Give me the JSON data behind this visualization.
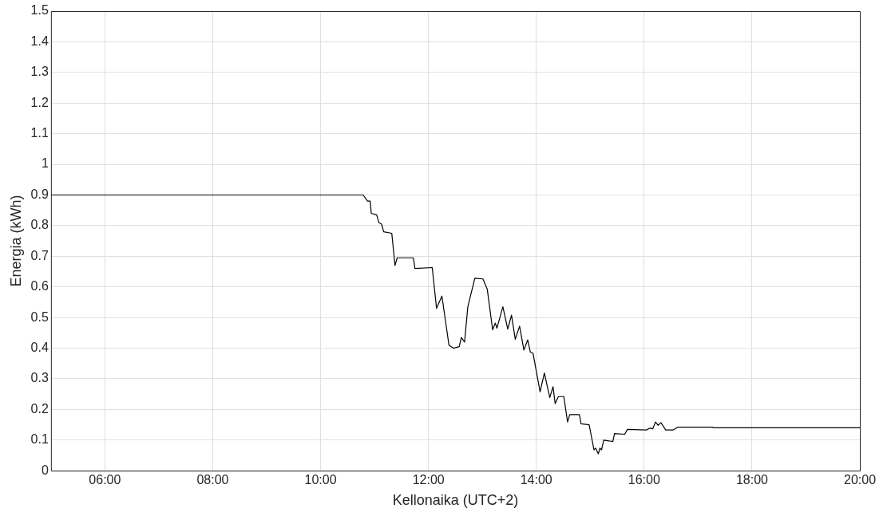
{
  "chart_data": {
    "type": "line",
    "xlabel": "Kellonaika (UTC+2)",
    "ylabel": "Energia (kWh)",
    "xlim": [
      5,
      20
    ],
    "xticks": [
      {
        "value": 6,
        "label": "06:00"
      },
      {
        "value": 8,
        "label": "08:00"
      },
      {
        "value": 10,
        "label": "10:00"
      },
      {
        "value": 12,
        "label": "12:00"
      },
      {
        "value": 14,
        "label": "14:00"
      },
      {
        "value": 16,
        "label": "16:00"
      },
      {
        "value": 18,
        "label": "18:00"
      },
      {
        "value": 20,
        "label": "20:00"
      }
    ],
    "ylim": [
      0,
      1.5
    ],
    "yticks": [
      0,
      0.1,
      0.2,
      0.3,
      0.4,
      0.5,
      0.6,
      0.7,
      0.8,
      0.9,
      1,
      1.1,
      1.2,
      1.3,
      1.4,
      1.5
    ],
    "grid": true,
    "marker": "none",
    "line_style": "solid",
    "series": [
      {
        "color": "#000000",
        "x": [
          5,
          10.79,
          10.87,
          10.92,
          10.94,
          11.04,
          11.08,
          11.13,
          11.17,
          11.32,
          11.38,
          11.42,
          11.72,
          11.75,
          12.07,
          12.15,
          12.25,
          12.38,
          12.46,
          12.57,
          12.61,
          12.67,
          12.73,
          12.86,
          13.01,
          13.09,
          13.19,
          13.24,
          13.27,
          13.38,
          13.47,
          13.54,
          13.61,
          13.69,
          13.77,
          13.84,
          13.89,
          13.94,
          14.07,
          14.15,
          14.21,
          14.25,
          14.31,
          14.35,
          14.41,
          14.51,
          14.58,
          14.62,
          14.8,
          14.83,
          14.98,
          15.07,
          15.1,
          15.15,
          15.18,
          15.21,
          15.25,
          15.42,
          15.45,
          15.64,
          15.69,
          16.04,
          16.11,
          16.16,
          16.21,
          16.26,
          16.31,
          16.4,
          16.54,
          16.62,
          17.27,
          17.28,
          20
        ],
        "values": [
          0.9,
          0.9,
          0.88,
          0.88,
          0.84,
          0.835,
          0.81,
          0.805,
          0.78,
          0.775,
          0.67,
          0.695,
          0.695,
          0.66,
          0.663,
          0.53,
          0.57,
          0.41,
          0.4,
          0.405,
          0.435,
          0.42,
          0.535,
          0.628,
          0.626,
          0.593,
          0.46,
          0.482,
          0.465,
          0.535,
          0.462,
          0.508,
          0.429,
          0.472,
          0.394,
          0.427,
          0.387,
          0.383,
          0.257,
          0.319,
          0.27,
          0.239,
          0.274,
          0.219,
          0.242,
          0.242,
          0.159,
          0.183,
          0.183,
          0.153,
          0.15,
          0.068,
          0.074,
          0.055,
          0.074,
          0.068,
          0.1,
          0.095,
          0.121,
          0.119,
          0.135,
          0.133,
          0.139,
          0.137,
          0.159,
          0.148,
          0.157,
          0.133,
          0.133,
          0.142,
          0.142,
          0.14,
          0.14
        ]
      }
    ]
  }
}
